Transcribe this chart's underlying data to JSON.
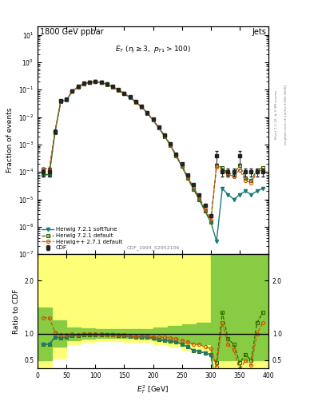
{
  "title_left": "1800 GeV ppbar",
  "title_right": "Jets",
  "watermark": "CDF_1994_S2952106",
  "ylabel_main": "Fraction of events",
  "ylabel_ratio": "Ratio to CDF",
  "xlim": [
    0,
    400
  ],
  "ylim_main": [
    1e-07,
    20
  ],
  "ylim_ratio": [
    0.35,
    2.5
  ],
  "ratio_yticks": [
    0.5,
    1.0,
    2.0
  ],
  "cdf_x": [
    10,
    20,
    30,
    40,
    50,
    60,
    70,
    80,
    90,
    100,
    110,
    120,
    130,
    140,
    150,
    160,
    170,
    180,
    190,
    200,
    210,
    220,
    230,
    240,
    250,
    260,
    270,
    280,
    290,
    300,
    310,
    320,
    330,
    340,
    350,
    360,
    370,
    380,
    390
  ],
  "cdf_y": [
    0.0001,
    0.0001,
    0.003,
    0.04,
    0.045,
    0.09,
    0.13,
    0.17,
    0.19,
    0.2,
    0.185,
    0.16,
    0.13,
    0.1,
    0.075,
    0.055,
    0.038,
    0.025,
    0.015,
    0.0085,
    0.0045,
    0.0023,
    0.0011,
    0.00045,
    0.0002,
    8e-05,
    3.5e-05,
    1.5e-05,
    6e-06,
    2.5e-06,
    0.0004,
    0.0001,
    0.0001,
    0.0001,
    0.0004,
    0.0001,
    0.0001,
    0.0001,
    0.0001
  ],
  "cdf_yerr_lo": [
    3e-05,
    3e-05,
    0.0005,
    0.004,
    0.005,
    0.008,
    0.01,
    0.012,
    0.012,
    0.012,
    0.011,
    0.009,
    0.007,
    0.005,
    0.0035,
    0.0025,
    0.0015,
    0.0009,
    0.0005,
    0.00028,
    0.00013,
    6e-05,
    2.5e-05,
    9e-06,
    3.5e-06,
    1.2e-06,
    4.5e-07,
    1.5e-07,
    5e-08,
    1.5e-08,
    0.0002,
    3e-05,
    3e-05,
    3e-05,
    0.0002,
    3e-05,
    3e-05,
    3e-05,
    3e-05
  ],
  "cdf_yerr_hi": [
    3e-05,
    3e-05,
    0.0005,
    0.004,
    0.005,
    0.008,
    0.01,
    0.012,
    0.012,
    0.012,
    0.011,
    0.009,
    0.007,
    0.005,
    0.0035,
    0.0025,
    0.0015,
    0.0009,
    0.0005,
    0.00028,
    0.00013,
    6e-05,
    2.5e-05,
    9e-06,
    3.5e-06,
    1.2e-06,
    4.5e-07,
    1.5e-07,
    5e-08,
    1.5e-08,
    0.0002,
    3e-05,
    3e-05,
    3e-05,
    0.0002,
    3e-05,
    3e-05,
    3e-05,
    3e-05
  ],
  "hppx": [
    10,
    20,
    30,
    40,
    50,
    60,
    70,
    80,
    90,
    100,
    110,
    120,
    130,
    140,
    150,
    160,
    170,
    180,
    190,
    200,
    210,
    220,
    230,
    240,
    250,
    260,
    270,
    280,
    290,
    300,
    310,
    320,
    330,
    340,
    350,
    360,
    370,
    380,
    390
  ],
  "hppy": [
    0.00013,
    0.00013,
    0.0031,
    0.039,
    0.044,
    0.089,
    0.128,
    0.168,
    0.188,
    0.198,
    0.183,
    0.158,
    0.128,
    0.098,
    0.073,
    0.053,
    0.036,
    0.024,
    0.0144,
    0.008,
    0.0042,
    0.00215,
    0.00101,
    0.00041,
    0.000175,
    6.8e-05,
    2.8e-05,
    1.2e-05,
    4.5e-06,
    1.8e-06,
    0.00015,
    0.00012,
    8e-05,
    7e-05,
    0.00012,
    5e-05,
    4e-05,
    0.0001,
    0.00012
  ],
  "h72dx": [
    10,
    20,
    30,
    40,
    50,
    60,
    70,
    80,
    90,
    100,
    110,
    120,
    130,
    140,
    150,
    160,
    170,
    180,
    190,
    200,
    210,
    220,
    230,
    240,
    250,
    260,
    270,
    280,
    290,
    300,
    310,
    320,
    330,
    340,
    350,
    360,
    370,
    380,
    390
  ],
  "h72dy": [
    8e-05,
    8e-05,
    0.0028,
    0.037,
    0.042,
    0.087,
    0.126,
    0.166,
    0.186,
    0.196,
    0.182,
    0.157,
    0.127,
    0.097,
    0.072,
    0.052,
    0.0355,
    0.0235,
    0.014,
    0.0078,
    0.004,
    0.002,
    0.00095,
    0.00038,
    0.00016,
    6e-05,
    2.4e-05,
    1e-05,
    3.8e-06,
    1.5e-06,
    0.00018,
    0.00014,
    9e-05,
    8e-05,
    0.00018,
    6e-05,
    5e-05,
    0.00012,
    0.00014
  ],
  "h72sx": [
    10,
    20,
    30,
    40,
    50,
    60,
    70,
    80,
    90,
    100,
    110,
    120,
    130,
    140,
    150,
    160,
    170,
    180,
    190,
    200,
    210,
    220,
    230,
    240,
    250,
    260,
    270,
    280,
    290,
    300,
    310,
    320,
    330,
    340,
    350,
    360,
    370,
    380,
    390
  ],
  "h72sy": [
    8e-05,
    8e-05,
    0.0028,
    0.037,
    0.042,
    0.087,
    0.126,
    0.166,
    0.186,
    0.196,
    0.182,
    0.157,
    0.127,
    0.097,
    0.072,
    0.052,
    0.0355,
    0.0235,
    0.014,
    0.0078,
    0.004,
    0.002,
    0.00095,
    0.00038,
    0.00016,
    6e-05,
    2.4e-05,
    1e-05,
    3.8e-06,
    1.5e-06,
    3e-07,
    2.5e-05,
    1.5e-05,
    1e-05,
    1.5e-05,
    2e-05,
    1.5e-05,
    2e-05,
    2.5e-05
  ],
  "color_cdf": "#222222",
  "color_hpp": "#CC5500",
  "color_h72d": "#336600",
  "color_h72s": "#1a7a7a",
  "legend_entries": [
    "CDF",
    "Herwig++ 2.7.1 default",
    "Herwig 7.2.1 default",
    "Herwig 7.2.1 softTune"
  ],
  "band_yellow_color": "#FFFF77",
  "band_green_color": "#88CC44",
  "bx_edges": [
    0,
    25,
    50,
    75,
    100,
    125,
    150,
    175,
    200,
    225,
    250,
    275,
    300,
    325,
    350,
    375,
    400
  ],
  "band_green_lo": [
    0.5,
    0.75,
    0.88,
    0.9,
    0.92,
    0.92,
    0.92,
    0.91,
    0.88,
    0.85,
    0.82,
    0.8,
    0.5,
    0.5,
    0.5,
    0.5,
    0.5
  ],
  "band_green_hi": [
    1.5,
    1.25,
    1.12,
    1.1,
    1.08,
    1.08,
    1.08,
    1.09,
    1.12,
    1.15,
    1.18,
    1.2,
    2.5,
    2.5,
    2.5,
    2.5,
    2.5
  ],
  "band_yellow_lo": [
    0.35,
    0.55,
    0.8,
    0.84,
    0.86,
    0.86,
    0.85,
    0.84,
    0.8,
    0.75,
    0.7,
    0.65,
    0.35,
    0.35,
    0.35,
    0.35,
    0.35
  ],
  "band_yellow_hi": [
    2.5,
    2.5,
    2.5,
    2.5,
    2.5,
    2.5,
    2.5,
    2.5,
    2.5,
    2.5,
    2.5,
    2.5,
    2.5,
    2.5,
    2.5,
    2.5,
    2.5
  ]
}
